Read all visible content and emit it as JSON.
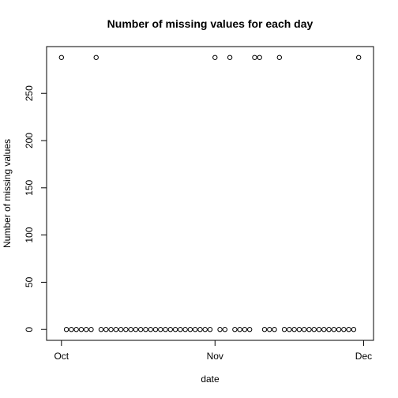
{
  "chart_data": {
    "type": "scatter",
    "title": "Number of missing values for each day",
    "xlabel": "date",
    "ylabel": "Number of missing values",
    "x_start_date": "2012-10-01",
    "x_ticks": [
      {
        "label": "Oct",
        "date": "2012-10-01"
      },
      {
        "label": "Nov",
        "date": "2012-11-01"
      },
      {
        "label": "Dec",
        "date": "2012-12-01"
      }
    ],
    "y_ticks": [
      0,
      50,
      100,
      150,
      200,
      250
    ],
    "xlim": [
      "2012-09-28",
      "2012-12-03"
    ],
    "ylim": [
      -11.52,
      299.52
    ],
    "series": [
      {
        "marker": "open-circle",
        "x": [
          "2012-10-01",
          "2012-10-02",
          "2012-10-03",
          "2012-10-04",
          "2012-10-05",
          "2012-10-06",
          "2012-10-07",
          "2012-10-08",
          "2012-10-09",
          "2012-10-10",
          "2012-10-11",
          "2012-10-12",
          "2012-10-13",
          "2012-10-14",
          "2012-10-15",
          "2012-10-16",
          "2012-10-17",
          "2012-10-18",
          "2012-10-19",
          "2012-10-20",
          "2012-10-21",
          "2012-10-22",
          "2012-10-23",
          "2012-10-24",
          "2012-10-25",
          "2012-10-26",
          "2012-10-27",
          "2012-10-28",
          "2012-10-29",
          "2012-10-30",
          "2012-10-31",
          "2012-11-01",
          "2012-11-02",
          "2012-11-03",
          "2012-11-04",
          "2012-11-05",
          "2012-11-06",
          "2012-11-07",
          "2012-11-08",
          "2012-11-09",
          "2012-11-10",
          "2012-11-11",
          "2012-11-12",
          "2012-11-13",
          "2012-11-14",
          "2012-11-15",
          "2012-11-16",
          "2012-11-17",
          "2012-11-18",
          "2012-11-19",
          "2012-11-20",
          "2012-11-21",
          "2012-11-22",
          "2012-11-23",
          "2012-11-24",
          "2012-11-25",
          "2012-11-26",
          "2012-11-27",
          "2012-11-28",
          "2012-11-29",
          "2012-11-30"
        ],
        "y": [
          288,
          0,
          0,
          0,
          0,
          0,
          0,
          288,
          0,
          0,
          0,
          0,
          0,
          0,
          0,
          0,
          0,
          0,
          0,
          0,
          0,
          0,
          0,
          0,
          0,
          0,
          0,
          0,
          0,
          0,
          0,
          288,
          0,
          0,
          288,
          0,
          0,
          0,
          0,
          288,
          288,
          0,
          0,
          0,
          288,
          0,
          0,
          0,
          0,
          0,
          0,
          0,
          0,
          0,
          0,
          0,
          0,
          0,
          0,
          0,
          288
        ]
      }
    ]
  }
}
